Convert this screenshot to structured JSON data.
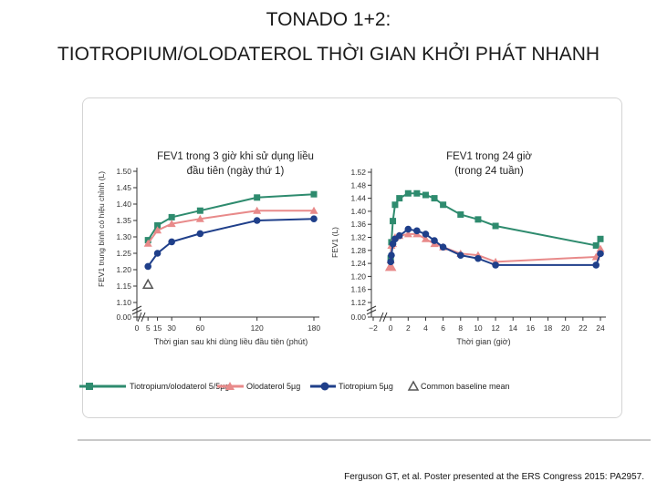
{
  "title_line1": "TONADO 1+2:",
  "title_line2": "TIOTROPIUM/OLODATEROL THỜI GIAN KHỞI PHÁT NHANH",
  "citation": "Ferguson GT, et al. Poster presented at the ERS Congress 2015: PA2957.",
  "colors": {
    "tio_olo": "#2e8b6e",
    "olo": "#e88a8a",
    "tio": "#1f3f8a",
    "baseline": "#777777",
    "axis": "#333333"
  },
  "legend": {
    "tio_olo": "Tiotropium/olodaterol 5/5µg",
    "olo": "Olodaterol 5µg",
    "tio": "Tiotropium 5µg",
    "baseline": "Common baseline mean"
  },
  "chart_data": [
    {
      "type": "line",
      "title_line1": "FEV1 trong 3 giờ khi sử dụng liều",
      "title_line2": "đầu tiên (ngày thứ 1)",
      "ylabel": "FEV1 trung bình có hiệu chỉnh (L)",
      "xlabel": "Thời gian sau khi dùng liều đầu tiên (phút)",
      "x_ticks": [
        "0",
        "5",
        "15",
        "30",
        "60",
        "120",
        "180"
      ],
      "y_ticks": [
        "0.00",
        "1.10",
        "1.15",
        "1.20",
        "1.25",
        "1.30",
        "1.35",
        "1.40",
        "1.45",
        "1.50"
      ],
      "ylim": [
        1.1,
        1.5
      ],
      "xlim": [
        0,
        180
      ],
      "axis_break": true,
      "baseline_mean": 1.155,
      "series": [
        {
          "key": "tio_olo",
          "name": "Tiotropium/olodaterol 5/5µg",
          "x": [
            5,
            15,
            30,
            60,
            120,
            180
          ],
          "y": [
            1.29,
            1.335,
            1.36,
            1.38,
            1.42,
            1.43
          ]
        },
        {
          "key": "olo",
          "name": "Olodaterol 5µg",
          "x": [
            5,
            15,
            30,
            60,
            120,
            180
          ],
          "y": [
            1.28,
            1.32,
            1.34,
            1.355,
            1.38,
            1.38
          ]
        },
        {
          "key": "tio",
          "name": "Tiotropium 5µg",
          "x": [
            5,
            15,
            30,
            60,
            120,
            180
          ],
          "y": [
            1.21,
            1.25,
            1.285,
            1.31,
            1.35,
            1.355
          ]
        }
      ]
    },
    {
      "type": "line",
      "title_line1": "FEV1 trong 24 giờ",
      "title_line2": "(trong 24 tuần)",
      "ylabel": "FEV1 (L)",
      "xlabel": "Thời gian (giờ)",
      "x_ticks": [
        "−2",
        "0",
        "2",
        "4",
        "6",
        "8",
        "10",
        "12",
        "14",
        "16",
        "18",
        "20",
        "22",
        "24"
      ],
      "y_ticks": [
        "0.00",
        "1.12",
        "1.16",
        "1.20",
        "1.24",
        "1.28",
        "1.32",
        "1.36",
        "1.40",
        "1.44",
        "1.48",
        "1.52"
      ],
      "ylim": [
        1.12,
        1.52
      ],
      "xlim": [
        -2,
        24
      ],
      "axis_break": true,
      "baseline_mean": 1.23,
      "series": [
        {
          "key": "tio_olo",
          "name": "Tiotropium/olodaterol 5/5µg",
          "x": [
            0,
            0.08,
            0.25,
            0.5,
            1,
            2,
            3,
            4,
            5,
            6,
            8,
            10,
            12,
            23.5,
            24
          ],
          "y": [
            1.255,
            1.305,
            1.37,
            1.42,
            1.44,
            1.455,
            1.455,
            1.45,
            1.44,
            1.42,
            1.39,
            1.375,
            1.355,
            1.295,
            1.315
          ]
        },
        {
          "key": "olo",
          "name": "Olodaterol 5µg",
          "x": [
            0,
            0.08,
            0.25,
            0.5,
            1,
            2,
            3,
            4,
            5,
            6,
            8,
            10,
            12,
            23.5,
            24
          ],
          "y": [
            1.25,
            1.295,
            1.3,
            1.32,
            1.325,
            1.33,
            1.33,
            1.315,
            1.3,
            1.29,
            1.27,
            1.265,
            1.245,
            1.26,
            1.285
          ]
        },
        {
          "key": "tio",
          "name": "Tiotropium 5µg",
          "x": [
            0,
            0.08,
            0.25,
            0.5,
            1,
            2,
            3,
            4,
            5,
            6,
            8,
            10,
            12,
            23.5,
            24
          ],
          "y": [
            1.245,
            1.265,
            1.3,
            1.315,
            1.325,
            1.345,
            1.34,
            1.33,
            1.31,
            1.29,
            1.265,
            1.255,
            1.235,
            1.235,
            1.27
          ]
        }
      ]
    }
  ]
}
